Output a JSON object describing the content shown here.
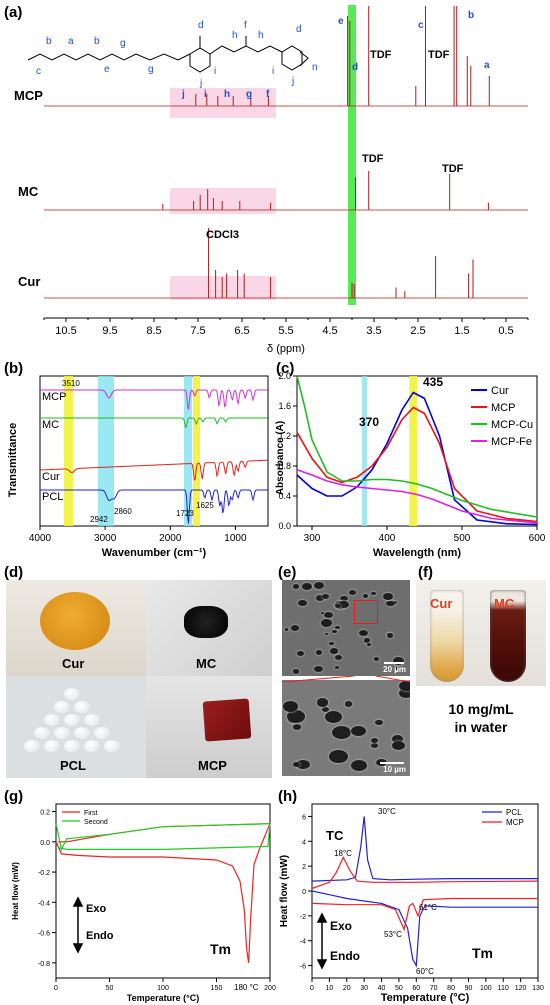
{
  "panels": {
    "a": "(a)",
    "b": "(b)",
    "c": "(c)",
    "d": "(d)",
    "e": "(e)",
    "f": "(f)",
    "g": "(g)",
    "h": "(h)"
  },
  "chart_data": [
    {
      "id": "a",
      "type": "line",
      "title": "",
      "xlabel": "δ (ppm)",
      "ylabel": "",
      "xlim": [
        11.0,
        0.0
      ],
      "x_ticks": [
        "10.5",
        "9.5",
        "8.5",
        "7.5",
        "6.5",
        "5.5",
        "4.5",
        "3.5",
        "2.5",
        "1.5",
        "0.5"
      ],
      "series": [
        {
          "name": "MCP",
          "peaks": [
            [
              7.55,
              0.12
            ],
            [
              7.3,
              0.12
            ],
            [
              7.05,
              0.1
            ],
            [
              6.7,
              0.1
            ],
            [
              6.3,
              0.08
            ],
            [
              5.9,
              0.1
            ],
            [
              4.1,
              0.9
            ],
            [
              4.05,
              0.85
            ],
            [
              3.62,
              1.0
            ],
            [
              2.55,
              0.2
            ],
            [
              2.33,
              1.0
            ],
            [
              1.68,
              1.0
            ],
            [
              1.62,
              1.0
            ],
            [
              1.38,
              0.5
            ],
            [
              1.3,
              0.4
            ],
            [
              0.88,
              0.3
            ]
          ]
        },
        {
          "name": "MC",
          "peaks": [
            [
              8.3,
              0.1
            ],
            [
              7.6,
              0.15
            ],
            [
              7.45,
              0.25
            ],
            [
              7.28,
              0.35
            ],
            [
              7.15,
              0.2
            ],
            [
              6.95,
              0.15
            ],
            [
              6.55,
              0.15
            ],
            [
              5.85,
              0.12
            ],
            [
              3.92,
              0.55
            ],
            [
              3.62,
              0.65
            ],
            [
              1.78,
              0.6
            ],
            [
              0.9,
              0.12
            ]
          ]
        },
        {
          "name": "Cur",
          "peaks": [
            [
              7.26,
              1.0
            ],
            [
              7.1,
              0.4
            ],
            [
              6.95,
              0.3
            ],
            [
              6.85,
              0.35
            ],
            [
              6.6,
              0.4
            ],
            [
              6.45,
              0.35
            ],
            [
              5.85,
              0.3
            ],
            [
              4.0,
              0.22
            ],
            [
              3.95,
              0.2
            ],
            [
              3.0,
              0.15
            ],
            [
              2.8,
              0.1
            ],
            [
              2.1,
              0.6
            ],
            [
              1.35,
              0.35
            ],
            [
              1.25,
              0.55
            ]
          ]
        }
      ],
      "annotations": [
        "TDF",
        "TDF",
        "TDF",
        "TDF",
        "CDCl3",
        "a",
        "b",
        "c",
        "d",
        "e",
        "f",
        "g",
        "h",
        "i",
        "j"
      ],
      "structure_labels": [
        "c",
        "b",
        "a",
        "b",
        "e",
        "g",
        "g",
        "d",
        "j",
        "i",
        "h",
        "f",
        "h",
        "i",
        "j",
        "d",
        "n"
      ],
      "peak_letters": [
        "j",
        "i",
        "h",
        "g",
        "f"
      ]
    },
    {
      "id": "b",
      "type": "line",
      "title": "",
      "xlabel": "Wavenumber (cm⁻¹)",
      "ylabel": "Transmittance",
      "xlim": [
        4000,
        500
      ],
      "x_ticks": [
        "4000",
        "3000",
        "2000",
        "1000"
      ],
      "series": [
        {
          "name": "MCP",
          "color": "#cc33cc"
        },
        {
          "name": "MC",
          "color": "#22bb22"
        },
        {
          "name": "Cur",
          "color": "#dd2222"
        },
        {
          "name": "PCL",
          "color": "#2222cc"
        }
      ],
      "annotations": [
        "3510",
        "2942",
        "2860",
        "1723",
        "1625"
      ]
    },
    {
      "id": "c",
      "type": "line",
      "title": "",
      "xlabel": "Wavelength (nm)",
      "ylabel": "Absorbance (A)",
      "xlim": [
        280,
        600
      ],
      "ylim": [
        0.0,
        2.0
      ],
      "x_ticks": [
        "300",
        "400",
        "500",
        "600"
      ],
      "y_ticks": [
        "0.0",
        "0.4",
        "0.8",
        "1.2",
        "1.6",
        "2.0"
      ],
      "series": [
        {
          "name": "Cur",
          "color": "#0000dd",
          "x": [
            280,
            300,
            320,
            340,
            360,
            380,
            400,
            420,
            435,
            450,
            470,
            490,
            520,
            560,
            600
          ],
          "y": [
            0.68,
            0.5,
            0.4,
            0.4,
            0.52,
            0.75,
            1.1,
            1.55,
            1.78,
            1.7,
            1.2,
            0.35,
            0.08,
            0.03,
            0.02
          ]
        },
        {
          "name": "MCP",
          "color": "#ee1111",
          "x": [
            280,
            300,
            320,
            340,
            360,
            380,
            400,
            420,
            435,
            450,
            470,
            490,
            520,
            560,
            600
          ],
          "y": [
            1.25,
            0.9,
            0.65,
            0.58,
            0.65,
            0.8,
            1.05,
            1.42,
            1.58,
            1.5,
            1.1,
            0.5,
            0.2,
            0.1,
            0.06
          ]
        },
        {
          "name": "MCP-Cu",
          "color": "#22bb22",
          "x": [
            280,
            290,
            300,
            320,
            340,
            360,
            380,
            400,
            420,
            440,
            460,
            480,
            500,
            540,
            600
          ],
          "y": [
            2.0,
            1.6,
            1.15,
            0.72,
            0.6,
            0.6,
            0.62,
            0.62,
            0.6,
            0.56,
            0.5,
            0.42,
            0.34,
            0.22,
            0.12
          ]
        },
        {
          "name": "MCP-Fe",
          "color": "#dd22dd",
          "x": [
            280,
            300,
            320,
            340,
            360,
            380,
            400,
            420,
            440,
            460,
            480,
            500,
            540,
            600
          ],
          "y": [
            0.75,
            0.68,
            0.6,
            0.55,
            0.52,
            0.5,
            0.48,
            0.46,
            0.42,
            0.36,
            0.28,
            0.2,
            0.1,
            0.04
          ]
        }
      ],
      "annotations": [
        "370",
        "435"
      ],
      "legend": "top-right"
    },
    {
      "id": "g",
      "type": "line",
      "title": "",
      "xlabel": "Temperature (°C)",
      "ylabel": "Heat flow (mW)",
      "xlim": [
        0,
        200
      ],
      "ylim": [
        -0.9,
        0.25
      ],
      "x_ticks": [
        "0",
        "50",
        "100",
        "150",
        "200"
      ],
      "y_ticks": [
        "0.2",
        "0.0",
        "-0.2",
        "-0.4",
        "-0.6",
        "-0.8"
      ],
      "series": [
        {
          "name": "First",
          "color": "#ee2222",
          "x": [
            0,
            5,
            20,
            50,
            100,
            150,
            165,
            172,
            176,
            178,
            180,
            182,
            185,
            190,
            200,
            198,
            150,
            100,
            50,
            10,
            2
          ],
          "y": [
            0.0,
            -0.08,
            -0.09,
            -0.1,
            -0.1,
            -0.12,
            -0.16,
            -0.26,
            -0.45,
            -0.7,
            -0.8,
            -0.5,
            -0.15,
            -0.05,
            0.12,
            0.12,
            0.11,
            0.1,
            0.05,
            0.0,
            0.0
          ]
        },
        {
          "name": "Second",
          "color": "#22cc22",
          "x": [
            0,
            5,
            10,
            50,
            100,
            150,
            200,
            198,
            150,
            100,
            50,
            10,
            2
          ],
          "y": [
            0.12,
            -0.05,
            0.02,
            0.05,
            0.1,
            0.11,
            0.12,
            -0.03,
            -0.04,
            -0.05,
            -0.05,
            -0.05,
            -0.04
          ]
        }
      ],
      "annotations": [
        "Exo",
        "Endo",
        "Tm",
        "180 °C"
      ],
      "legend": "top-left"
    },
    {
      "id": "h",
      "type": "line",
      "title": "",
      "xlabel": "Temperature (°C)",
      "ylabel": "Heat flow (mW)",
      "xlim": [
        0,
        130
      ],
      "ylim": [
        -7,
        7
      ],
      "x_ticks": [
        "0",
        "10",
        "20",
        "30",
        "40",
        "50",
        "60",
        "70",
        "80",
        "90",
        "100",
        "110",
        "120",
        "130"
      ],
      "y_ticks": [
        "6",
        "4",
        "2",
        "0",
        "-2",
        "-4",
        "-6"
      ],
      "series": [
        {
          "name": "PCL",
          "color": "#2222cc",
          "x": [
            0,
            20,
            25,
            28,
            30,
            32,
            35,
            45,
            60,
            80,
            130
          ],
          "y": [
            0.8,
            0.9,
            1.1,
            3.5,
            6.0,
            2.5,
            1.0,
            0.9,
            0.95,
            1.0,
            1.0
          ]
        },
        {
          "name": "PCL-heat",
          "color": "#2222cc",
          "x": [
            0,
            10,
            20,
            40,
            50,
            55,
            58,
            60,
            62,
            65,
            80,
            130
          ],
          "y": [
            0.0,
            -0.3,
            -0.6,
            -1.0,
            -1.5,
            -3.0,
            -5.5,
            -6.0,
            -2.0,
            -1.2,
            -1.3,
            -1.3
          ]
        },
        {
          "name": "MCP",
          "color": "#ee2222",
          "x": [
            0,
            10,
            14,
            18,
            22,
            26,
            35,
            60,
            80,
            130
          ],
          "y": [
            0.2,
            0.7,
            1.5,
            2.7,
            1.6,
            0.8,
            0.7,
            0.7,
            0.75,
            0.8
          ]
        },
        {
          "name": "MCP-heat",
          "color": "#ee2222",
          "x": [
            0,
            20,
            40,
            48,
            53,
            56,
            58,
            61,
            64,
            80,
            130
          ],
          "y": [
            -1.0,
            -1.1,
            -1.1,
            -1.5,
            -3.1,
            -1.2,
            -1.0,
            -2.0,
            -0.7,
            -0.6,
            -0.6
          ]
        }
      ],
      "annotations": [
        "TC",
        "30°C",
        "18°C",
        "61°C",
        "53°C",
        "60°C",
        "Exo",
        "Endo",
        "Tm"
      ],
      "legend": "top-right"
    }
  ],
  "photos": {
    "d": {
      "cur": "Cur",
      "mc": "MC",
      "pcl": "PCL",
      "mcp": "MCP"
    },
    "e": {
      "top_scale": "20 µm",
      "bottom_scale": "10 µm"
    },
    "f": {
      "left": "Cur",
      "right": "MC",
      "caption_line1": "10 mg/mL",
      "caption_line2": "in water"
    }
  }
}
